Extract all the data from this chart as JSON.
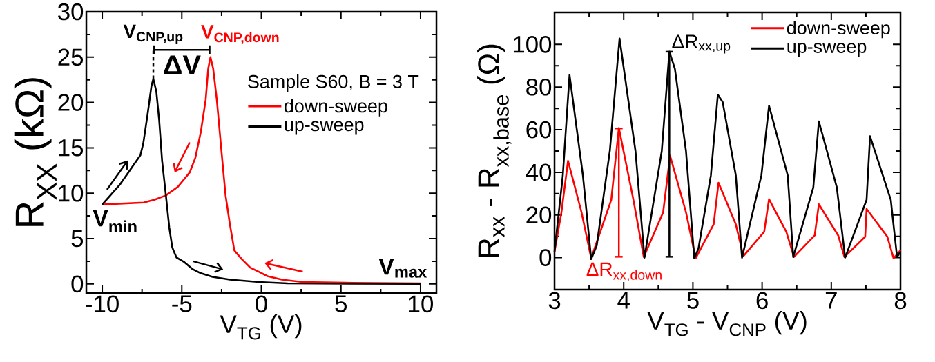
{
  "chart_data": [
    {
      "type": "line",
      "xlabel": "V$_{TG}$ (V)",
      "ylabel": "R$_{XX}$ (kΩ)",
      "legend_title": "Sample S60, B = 3 T",
      "xlim": [
        -11,
        11
      ],
      "ylim": [
        -1,
        30
      ],
      "xticks": [
        -10,
        -5,
        0,
        5,
        10
      ],
      "yticks": [
        0,
        5,
        10,
        15,
        20,
        25,
        30
      ],
      "legend": "top right",
      "series": [
        {
          "name": "down-sweep",
          "color": "#ff0000",
          "x": [
            -10,
            -7.4,
            -6.7,
            -6.0,
            -5.25,
            -4.5,
            -4.15,
            -3.8,
            -3.5,
            -3.34,
            -3.2,
            -3.03,
            -2.8,
            -2.52,
            -2.25,
            -1.98,
            -1.7,
            -1.25,
            -0.7,
            -0.16,
            0.38,
            1.29,
            2.56,
            5.28,
            10
          ],
          "values": [
            8.75,
            8.97,
            9.3,
            9.76,
            10.7,
            12.3,
            13.9,
            16.8,
            20.3,
            23.75,
            25.0,
            23.75,
            20.3,
            14.85,
            9.76,
            6.6,
            3.7,
            2.77,
            1.8,
            1.34,
            0.86,
            0.48,
            0.22,
            0.13,
            0.06
          ]
        },
        {
          "name": "up-sweep",
          "color": "#000000",
          "x": [
            -10,
            -8.87,
            -7.97,
            -7.6,
            -7.42,
            -7.15,
            -6.91,
            -6.79,
            -6.6,
            -6.42,
            -6.24,
            -6.0,
            -5.79,
            -5.6,
            -5.34,
            -4.88,
            -4.34,
            -3.8,
            -3.07,
            -1.98,
            -0.16,
            1.65,
            10
          ],
          "values": [
            8.75,
            11.0,
            13.26,
            14.2,
            15.5,
            18.7,
            21.8,
            22.6,
            21.2,
            18.0,
            13.6,
            9.76,
            6.26,
            4.04,
            2.93,
            2.45,
            1.65,
            1.18,
            0.79,
            0.48,
            0.22,
            0.06,
            0
          ]
        }
      ],
      "annotations": [
        {
          "text": "V$_{CNP,up}$",
          "x": -6.79,
          "y": 22.6
        },
        {
          "text": "V$_{CNP,down}$",
          "x": -3.2,
          "y": 25.0
        },
        "ΔV",
        {
          "text": "V$_{min}$",
          "x": -10,
          "y": 8.75
        },
        {
          "text": "V$_{max}$",
          "x": 10,
          "y": 0.06
        }
      ]
    },
    {
      "type": "line",
      "xlabel": "V$_{TG}$ - V$_{CNP}$ (V)",
      "ylabel": "R$_{xx}$ - R$_{xx,base}$ (Ω)",
      "xlim": [
        3,
        8
      ],
      "ylim": [
        -15,
        115
      ],
      "xticks": [
        3,
        4,
        5,
        6,
        7,
        8
      ],
      "yticks": [
        0,
        20,
        40,
        60,
        80,
        100
      ],
      "legend": "top right",
      "series": [
        {
          "name": "down-sweep",
          "color": "#ff0000",
          "x": [
            3.0,
            3.1,
            3.195,
            3.39,
            3.53,
            3.82,
            3.93,
            4.14,
            4.29,
            4.57,
            4.67,
            4.9,
            5.04,
            5.3,
            5.37,
            5.62,
            5.73,
            6.03,
            6.1,
            6.35,
            6.46,
            6.76,
            6.82,
            7.1,
            7.19,
            7.49,
            7.51,
            7.81,
            7.9,
            8.0
          ],
          "values": [
            2.8,
            21.3,
            45.4,
            21.3,
            -0.3,
            27.1,
            60.8,
            27.1,
            0.3,
            21.3,
            47.8,
            21.3,
            -0.3,
            15.6,
            35.1,
            15.6,
            0.7,
            12.1,
            27.4,
            12.1,
            0.3,
            10.4,
            25.0,
            10.4,
            0.3,
            9.8,
            22.8,
            9.8,
            -0.3,
            3.5
          ]
        },
        {
          "name": "up-sweep",
          "color": "#000000",
          "x": [
            3.0,
            3.12,
            3.217,
            3.41,
            3.53,
            3.61,
            3.8,
            3.94,
            4.17,
            4.3,
            4.55,
            4.66,
            4.74,
            4.9,
            5.02,
            5.08,
            5.26,
            5.36,
            5.43,
            5.62,
            5.71,
            5.99,
            6.1,
            6.37,
            6.45,
            6.74,
            6.82,
            7.08,
            7.2,
            7.51,
            7.56,
            7.86,
            7.95,
            8.0
          ],
          "values": [
            2.8,
            38.6,
            85.7,
            38.6,
            -0.7,
            5.6,
            50.2,
            102.8,
            50,
            0,
            50,
            96.6,
            88.5,
            50,
            -0.3,
            4.2,
            38.6,
            76.4,
            73,
            38.6,
            0,
            38.6,
            71.2,
            38.6,
            0.3,
            32.9,
            63.9,
            32.9,
            0,
            27.1,
            56.9,
            27.1,
            0.3,
            2.8
          ]
        }
      ],
      "annotations": [
        {
          "text": "ΔR$_{xx,up}$",
          "x": 4.66,
          "y": 97
        },
        {
          "text": "ΔR$_{xx,down}$",
          "x": 3.93,
          "y": 61
        }
      ]
    }
  ]
}
